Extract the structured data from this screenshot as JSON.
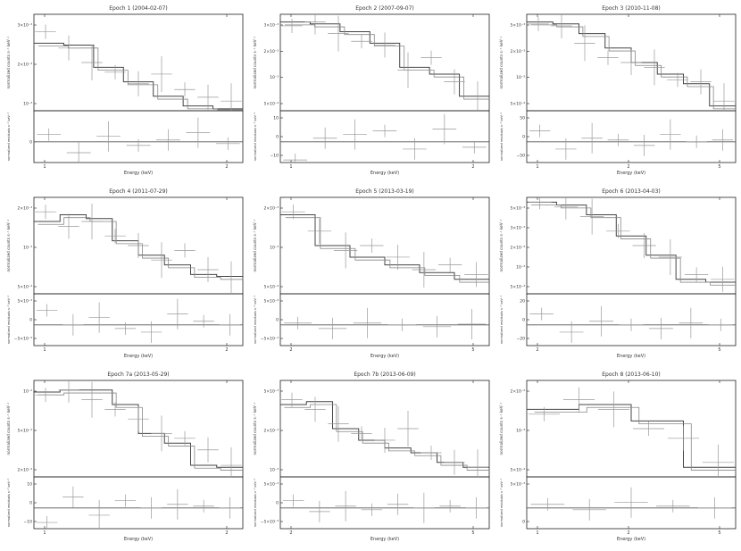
{
  "chart_data": [
    {
      "type": "step",
      "title": "Epoch 1 (2004-02-07)",
      "ylabel_top": "normalized counts s⁻¹ keV⁻¹",
      "ylabel_bottom": "normalized residuals s⁻¹ keV⁻¹",
      "xlabel": "Energy (keV)",
      "xticks": [
        "1",
        "2"
      ],
      "yticks_top": [
        "3×10⁻³",
        "2×10⁻³",
        "10⁻³"
      ],
      "yticks_bottom": [
        "0"
      ],
      "model_steps": [
        0.3,
        0.32,
        0.55,
        0.7,
        0.85,
        0.95,
        0.98
      ],
      "data_points": [
        0.18,
        0.35,
        0.5,
        0.6,
        0.72,
        0.62,
        0.78,
        0.86,
        0.9
      ],
      "residuals": [
        0.2,
        -0.3,
        0.15,
        -0.1,
        0.05,
        0.25,
        -0.05
      ]
    },
    {
      "type": "step",
      "title": "Epoch 2 (2007-09-07)",
      "ylabel_top": "normalized counts s⁻¹ keV⁻¹",
      "ylabel_bottom": "normalized residuals s⁻¹ keV⁻¹",
      "xlabel": "Energy (keV)",
      "xticks": [
        "1",
        "2"
      ],
      "yticks_top": [
        "3×10⁻³",
        "2×10⁻³",
        "10⁻³",
        "5×10⁻⁴"
      ],
      "yticks_bottom": [
        "10",
        "0",
        "−10"
      ],
      "model_steps": [
        0.08,
        0.1,
        0.18,
        0.3,
        0.55,
        0.62,
        0.85
      ],
      "data_points": [
        0.12,
        0.08,
        0.2,
        0.28,
        0.32,
        0.58,
        0.45,
        0.7,
        0.88
      ],
      "residuals": [
        -0.5,
        0.1,
        0.2,
        0.3,
        -0.2,
        0.35,
        -0.15
      ]
    },
    {
      "type": "step",
      "title": "Epoch 3 (2010-11-08)",
      "ylabel_top": "normalized counts s⁻¹ keV⁻¹",
      "ylabel_bottom": "normalized residuals s⁻¹ keV⁻¹",
      "xlabel": "Energy (keV)",
      "xticks": [
        "1",
        "2",
        "5"
      ],
      "yticks_top": [
        "5×10⁻³",
        "2×10⁻³",
        "10⁻³",
        "5×10⁻⁴"
      ],
      "yticks_bottom": [
        "50",
        "0",
        "−50"
      ],
      "model_steps": [
        0.08,
        0.1,
        0.2,
        0.35,
        0.5,
        0.62,
        0.72,
        0.95
      ],
      "data_points": [
        0.1,
        0.12,
        0.3,
        0.45,
        0.5,
        0.55,
        0.68,
        0.7,
        0.9
      ],
      "residuals": [
        0.3,
        -0.2,
        0.1,
        0.05,
        -0.1,
        0.2,
        0.0,
        0.05
      ]
    },
    {
      "type": "step",
      "title": "Epoch 4 (2011-07-29)",
      "ylabel_top": "normalized counts s⁻¹ keV⁻¹",
      "ylabel_bottom": "normalized residuals s⁻¹ keV⁻¹",
      "xlabel": "Energy (keV)",
      "xticks": [
        "1",
        "2"
      ],
      "yticks_top": [
        "2×10⁻³",
        "10⁻³",
        "5×10⁻⁴"
      ],
      "yticks_bottom": [
        "5×10⁻³",
        "0",
        "−5×10⁻³"
      ],
      "model_steps": [
        0.25,
        0.18,
        0.22,
        0.45,
        0.6,
        0.7,
        0.8,
        0.82
      ],
      "data_points": [
        0.15,
        0.3,
        0.25,
        0.4,
        0.5,
        0.65,
        0.55,
        0.75,
        0.85
      ],
      "residuals": [
        0.4,
        0.0,
        0.2,
        -0.1,
        -0.2,
        0.3,
        0.1,
        0.0
      ]
    },
    {
      "type": "step",
      "title": "Epoch 5 (2013-03-19)",
      "ylabel_top": "normalized counts s⁻¹ keV⁻¹",
      "ylabel_bottom": "normalized residuals s⁻¹ keV⁻¹",
      "xlabel": "Energy (keV)",
      "xticks": [
        "2",
        "5"
      ],
      "yticks_top": [
        "2×10⁻³",
        "10⁻³",
        "5×10⁻⁴"
      ],
      "yticks_bottom": [
        "5×10⁻³",
        "0",
        "−5×10⁻³"
      ],
      "model_steps": [
        0.18,
        0.5,
        0.62,
        0.7,
        0.78,
        0.85
      ],
      "data_points": [
        0.15,
        0.35,
        0.55,
        0.5,
        0.62,
        0.75,
        0.7,
        0.8
      ],
      "residuals": [
        0.05,
        -0.1,
        0.05,
        0.0,
        -0.05,
        0.02
      ]
    },
    {
      "type": "step",
      "title": "Epoch 6 (2013-04-03)",
      "ylabel_top": "normalized counts s⁻¹ keV⁻¹",
      "ylabel_bottom": "normalized residuals s⁻¹ keV⁻¹",
      "xlabel": "Energy (keV)",
      "xticks": [
        "2",
        "5"
      ],
      "yticks_top": [
        "5×10⁻³",
        "3×10⁻³",
        "2×10⁻³",
        "10⁻³",
        "5×10⁻⁴"
      ],
      "yticks_bottom": [
        "20",
        "0",
        "−20"
      ],
      "model_steps": [
        0.05,
        0.08,
        0.18,
        0.4,
        0.6,
        0.85,
        0.88
      ],
      "data_points": [
        0.05,
        0.1,
        0.2,
        0.35,
        0.5,
        0.62,
        0.8,
        0.85
      ],
      "residuals": [
        0.3,
        -0.2,
        0.1,
        0.0,
        -0.1,
        0.05,
        0.0
      ]
    },
    {
      "type": "step",
      "title": "Epoch 7a (2013-05-29)",
      "ylabel_top": "normalized counts s⁻¹ keV⁻¹",
      "ylabel_bottom": "normalized residuals s⁻¹ keV⁻¹",
      "xlabel": "Energy (keV)",
      "xticks": [
        "1",
        "2"
      ],
      "yticks_top": [
        "10⁻²",
        "5×10⁻³",
        "2×10⁻³"
      ],
      "yticks_bottom": [
        "10",
        "0",
        "−10"
      ],
      "model_steps": [
        0.12,
        0.1,
        0.1,
        0.25,
        0.55,
        0.65,
        0.88,
        0.9
      ],
      "data_points": [
        0.15,
        0.1,
        0.2,
        0.3,
        0.4,
        0.55,
        0.6,
        0.72,
        0.88
      ],
      "residuals": [
        -0.4,
        0.3,
        -0.2,
        0.2,
        0.0,
        0.1,
        0.05,
        0.0
      ]
    },
    {
      "type": "step",
      "title": "Epoch 7b (2013-06-09)",
      "ylabel_top": "normalized counts s⁻¹ keV⁻¹",
      "ylabel_bottom": "normalized residuals s⁻¹ keV⁻¹",
      "xlabel": "Energy (keV)",
      "xticks": [
        "2",
        "5"
      ],
      "yticks_top": [
        "5×10⁻³",
        "2×10⁻³",
        "10⁻³"
      ],
      "yticks_bottom": [
        "5×10⁻³",
        "0",
        "−5×10⁻³"
      ],
      "model_steps": [
        0.25,
        0.22,
        0.5,
        0.62,
        0.7,
        0.75,
        0.85,
        0.9
      ],
      "data_points": [
        0.2,
        0.3,
        0.45,
        0.55,
        0.62,
        0.5,
        0.75,
        0.85,
        0.9
      ],
      "residuals": [
        0.2,
        -0.1,
        0.05,
        -0.05,
        0.1,
        0.0,
        0.05,
        0.0
      ]
    },
    {
      "type": "step",
      "title": "Epoch 8 (2013-06-10)",
      "ylabel_top": "normalized counts s⁻¹ keV⁻¹",
      "ylabel_bottom": "normalized residuals s⁻¹ keV⁻¹",
      "xlabel": "Energy (keV)",
      "xticks": [
        "1",
        "2",
        "5"
      ],
      "yticks_top": [
        "2×10⁻³",
        "10⁻³",
        "5×10⁻⁴"
      ],
      "yticks_bottom": [
        "5×10⁻³",
        "0"
      ],
      "model_steps": [
        0.3,
        0.25,
        0.42,
        0.9
      ],
      "data_points": [
        0.35,
        0.2,
        0.3,
        0.5,
        0.6,
        0.85
      ],
      "residuals": [
        0.1,
        -0.05,
        0.15,
        0.05,
        0.0
      ]
    }
  ]
}
